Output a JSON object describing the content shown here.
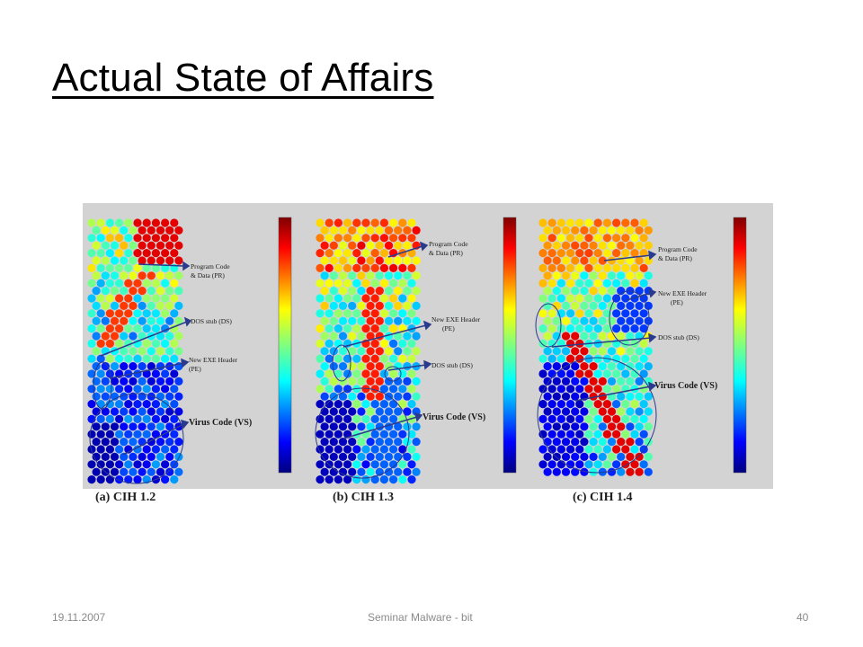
{
  "slide": {
    "title": "Actual State of Affairs",
    "footer_date": "19.11.2007",
    "footer_center": "Seminar Malware - bit",
    "footer_page": "40"
  },
  "figure": {
    "panels": [
      {
        "caption": "(a) CIH 1.2",
        "labels": {
          "pr": [
            "Program Code",
            "& Data (PR)"
          ],
          "ds": [
            "DOS stub (DS)"
          ],
          "pe": [
            "New EXE Header",
            "(PE)"
          ],
          "vs": [
            "Virus Code (VS)"
          ]
        }
      },
      {
        "caption": "(b) CIH 1.3",
        "labels": {
          "pr": [
            "Program Code",
            "& Data (PR)"
          ],
          "pe": [
            "New EXE Header",
            "(PE)"
          ],
          "ds": [
            "DOS stub (DS)"
          ],
          "vs": [
            "Virus Code (VS)"
          ]
        }
      },
      {
        "caption": "(c) CIH 1.4",
        "labels": {
          "pr": [
            "Program Code",
            "& Data (PR)"
          ],
          "pe": [
            "New EXE Header",
            "(PE)"
          ],
          "ds": [
            "DOS stub (DS)"
          ],
          "vs": [
            "Virus Code (VS)"
          ]
        }
      }
    ],
    "colors": {
      "panel_bg": "#d3d3d3",
      "annotation": "#2a3a8c"
    }
  }
}
